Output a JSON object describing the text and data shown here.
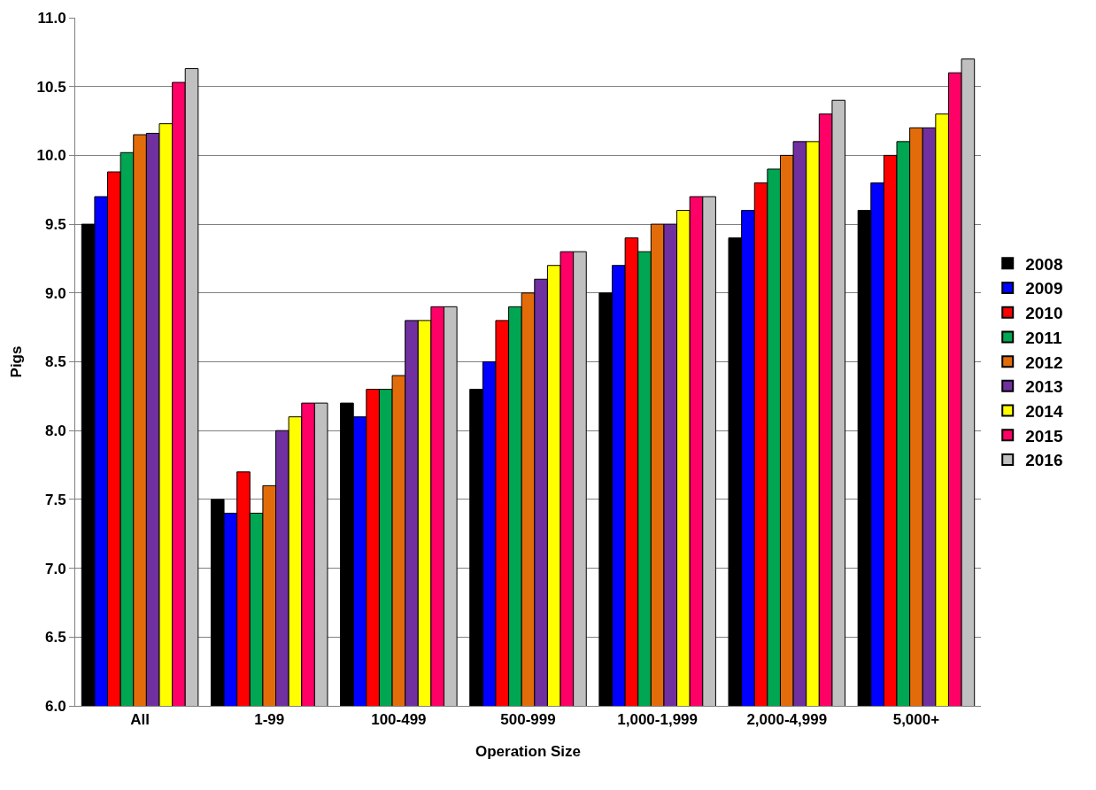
{
  "chart_data": {
    "type": "bar",
    "xlabel": "Operation Size",
    "ylabel": "Pigs",
    "categories": [
      "All",
      "1-99",
      "100-499",
      "500-999",
      "1,000-1,999",
      "2,000-4,999",
      "5,000+"
    ],
    "series": [
      {
        "name": "2008",
        "color": "#000000",
        "values": [
          9.5,
          7.5,
          8.2,
          8.3,
          9.0,
          9.4,
          9.6
        ]
      },
      {
        "name": "2009",
        "color": "#0000ff",
        "values": [
          9.7,
          7.4,
          8.1,
          8.5,
          9.2,
          9.6,
          9.8
        ]
      },
      {
        "name": "2010",
        "color": "#ff0000",
        "values": [
          9.88,
          7.7,
          8.3,
          8.8,
          9.4,
          9.8,
          10.0
        ]
      },
      {
        "name": "2011",
        "color": "#00a651",
        "values": [
          10.02,
          7.4,
          8.3,
          8.9,
          9.3,
          9.9,
          10.1
        ]
      },
      {
        "name": "2012",
        "color": "#e36c0a",
        "values": [
          10.15,
          7.6,
          8.4,
          9.0,
          9.5,
          10.0,
          10.2
        ]
      },
      {
        "name": "2013",
        "color": "#7030a0",
        "values": [
          10.16,
          8.0,
          8.8,
          9.1,
          9.5,
          10.1,
          10.2
        ]
      },
      {
        "name": "2014",
        "color": "#ffff00",
        "values": [
          10.23,
          8.1,
          8.8,
          9.2,
          9.6,
          10.1,
          10.3
        ]
      },
      {
        "name": "2015",
        "color": "#ff0066",
        "values": [
          10.53,
          8.2,
          8.9,
          9.3,
          9.7,
          10.3,
          10.6
        ]
      },
      {
        "name": "2016",
        "color": "#c0c0c0",
        "values": [
          10.63,
          8.2,
          8.9,
          9.3,
          9.7,
          10.4,
          10.7
        ]
      }
    ],
    "ylim": [
      6.0,
      11.0
    ],
    "yticks": [
      {
        "value": 6,
        "label": "6.0"
      },
      6.5,
      {
        "value": 7,
        "label": "7.0"
      },
      7.5,
      {
        "value": 8,
        "label": "8.0"
      },
      8.5,
      {
        "value": 9,
        "label": "9.0"
      },
      9.5,
      {
        "value": 10,
        "label": "10.0"
      },
      10.5,
      {
        "value": 11,
        "label": "11.0"
      }
    ],
    "grid": "y",
    "legend": "right"
  }
}
